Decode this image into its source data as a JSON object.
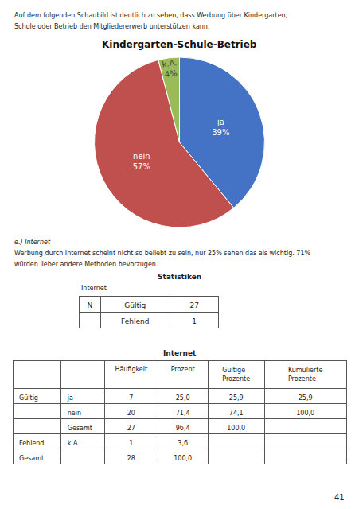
{
  "chart_data": [
    {
      "type": "pie",
      "title": "Kindergarten-Schule-Betrieb",
      "categories": [
        "ja",
        "nein",
        "k.A."
      ],
      "values": [
        39,
        57,
        4
      ],
      "value_labels": [
        "39%",
        "57%",
        "4%"
      ],
      "colors": [
        "#4472C4",
        "#C0504D",
        "#9BBB59"
      ],
      "data_labels": true,
      "legend": false,
      "annotations": [
        "Auf dem folgenden Schaubild ist deutlich zu sehen, dass Werbung über Kindergarten,",
        "Schule oder Betrieb den Mitgliedererwerb unterstützen kann.",
        "e.) Internet",
        "Werbung durch Internet scheint nicht so beliebt zu sein, nur 25% sehen das als wichtig. 71%",
        "würden lieber andere Methoden bevorzugen.",
        "41"
      ]
    },
    {
      "type": "table",
      "title": "Statistiken",
      "subtitle": "Internet",
      "rows": [
        [
          "N",
          "Gültig",
          "27"
        ],
        [
          null,
          "Fehlend",
          "1"
        ]
      ]
    },
    {
      "type": "table",
      "title": "Internet",
      "headers": [
        null,
        null,
        "Häufigkeit",
        "Prozent",
        "Gültige\nProzente",
        "Kumulierte\nProzente"
      ],
      "rows": [
        [
          "Gültig",
          "ja",
          "7",
          "25,0",
          "25,9",
          "25,9"
        ],
        [
          null,
          "nein",
          "20",
          "71,4",
          "74,1",
          "100,0"
        ],
        [
          null,
          "Gesamt",
          "27",
          "96,4",
          "100,0",
          null
        ],
        [
          "Fehlend",
          "k.A.",
          "1",
          "3,6",
          null,
          null
        ],
        [
          "Gesamt",
          null,
          "28",
          "100,0",
          null,
          null
        ]
      ]
    }
  ]
}
